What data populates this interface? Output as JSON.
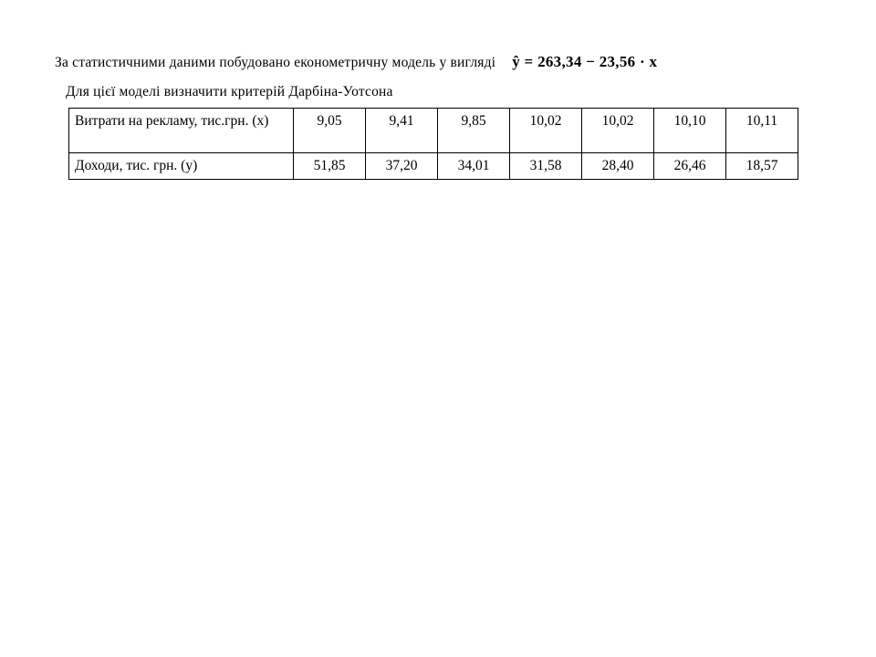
{
  "page": {
    "background": "#ffffff",
    "text_color": "#000000"
  },
  "intro": {
    "line1": "За статистичними даними побудовано економетричну модель у вигляді",
    "formula": "ŷ = 263,34 − 23,56 · x",
    "line2": "Для цієї моделі визначити критерій Дарбіна-Уотсона"
  },
  "table": {
    "rows": [
      {
        "label": "Витрати на рекламу, тис.грн. (х)",
        "values": [
          "9,05",
          "9,41",
          "9,85",
          "10,02",
          "10,02",
          "10,10",
          "10,11"
        ]
      },
      {
        "label": "Доходи, тис. грн. (у)",
        "values": [
          "51,85",
          "37,20",
          "34,01",
          "31,58",
          "28,40",
          "26,46",
          "18,57"
        ]
      }
    ]
  }
}
